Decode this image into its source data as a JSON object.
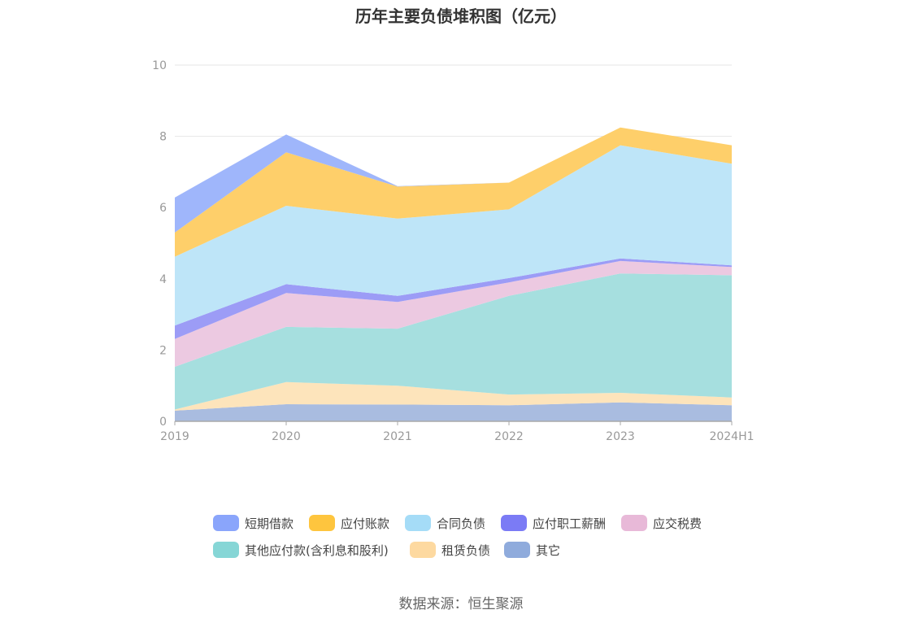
{
  "title": "历年主要负债堆积图（亿元）",
  "source": "数据来源：恒生聚源",
  "colors": {
    "短期借款": "#9fb6fb",
    "应付账款": "#fecf6a",
    "合同负债": "#bee5f8",
    "应付职工薪酬": "#9c9cf6",
    "应交税费": "#ecc9e1",
    "其他应付款(含利息和股利)": "#a6dfdf",
    "租赁负债": "#fde4bb",
    "其它": "#a9bce0"
  },
  "legend_swatch_colors": {
    "短期借款": "#8aa5fb",
    "应付账款": "#fec53e",
    "合同负债": "#a5dcf7",
    "应付职工薪酬": "#7b7bf5",
    "应交税费": "#e8b9d8",
    "其他应付款(含利息和股利)": "#86d6d6",
    "租赁负债": "#fdd9a0",
    "其它": "#8fabdc"
  },
  "chart_data": {
    "type": "area",
    "stacked": true,
    "x": [
      "2019",
      "2020",
      "2021",
      "2022",
      "2023",
      "2024H1"
    ],
    "ylim": [
      0,
      10
    ],
    "yticks": [
      0,
      2,
      4,
      6,
      8,
      10
    ],
    "grid": true,
    "legend_position": "bottom",
    "series": [
      {
        "name": "其它",
        "values": [
          0.3,
          0.48,
          0.47,
          0.45,
          0.53,
          0.45
        ]
      },
      {
        "name": "租赁负债",
        "values": [
          0.03,
          0.62,
          0.53,
          0.3,
          0.27,
          0.22
        ]
      },
      {
        "name": "其他应付款(含利息和股利)",
        "values": [
          1.2,
          1.55,
          1.6,
          2.77,
          3.35,
          3.43
        ]
      },
      {
        "name": "应交税费",
        "values": [
          0.78,
          0.95,
          0.75,
          0.38,
          0.35,
          0.23
        ]
      },
      {
        "name": "应付职工薪酬",
        "values": [
          0.38,
          0.25,
          0.17,
          0.12,
          0.07,
          0.05
        ]
      },
      {
        "name": "合同负债",
        "values": [
          1.93,
          2.2,
          2.17,
          1.93,
          3.18,
          2.85
        ]
      },
      {
        "name": "应付账款",
        "values": [
          0.68,
          1.5,
          0.9,
          0.75,
          0.5,
          0.52
        ]
      },
      {
        "name": "短期借款",
        "values": [
          0.98,
          0.5,
          0.01,
          0.0,
          0.0,
          0.0
        ]
      }
    ]
  },
  "legend_rows": [
    [
      "短期借款",
      "应付账款",
      "合同负债",
      "应付职工薪酬",
      "应交税费"
    ],
    [
      "其他应付款(含利息和股利)",
      "租赁负债",
      "其它"
    ]
  ]
}
